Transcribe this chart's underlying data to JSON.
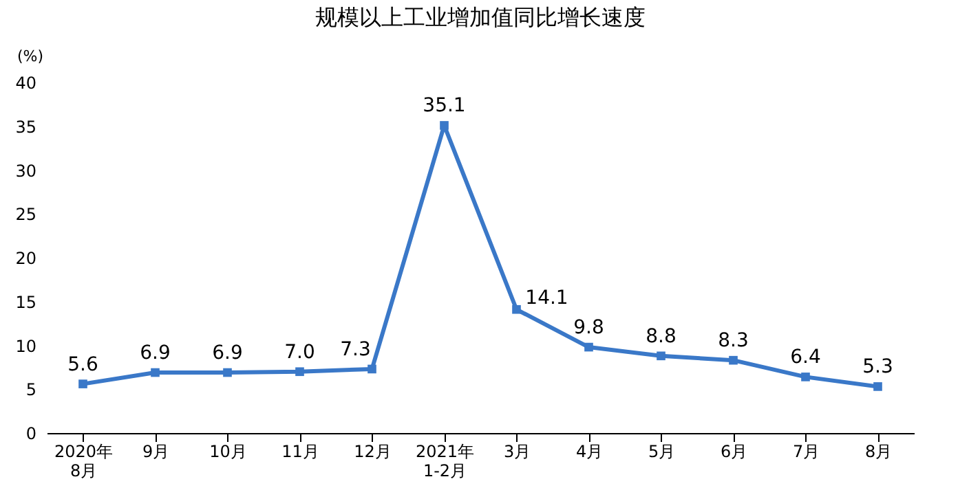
{
  "chart_data": {
    "type": "line",
    "title": "规模以上工业增加值同比增长速度",
    "ylabel": "(%)",
    "categories": [
      "2020年\n8月",
      "9月",
      "10月",
      "11月",
      "12月",
      "2021年\n1-2月",
      "3月",
      "4月",
      "5月",
      "6月",
      "7月",
      "8月"
    ],
    "series": [
      {
        "color": "#3a78c8",
        "values": [
          5.6,
          6.9,
          6.9,
          7.0,
          7.3,
          35.1,
          14.1,
          9.8,
          8.8,
          8.3,
          6.4,
          5.3
        ]
      }
    ],
    "value_labels": [
      "5.6",
      "6.9",
      "6.9",
      "7.0",
      "7.3",
      "35.1",
      "14.1",
      "9.8",
      "8.8",
      "8.3",
      "6.4",
      "5.3"
    ],
    "ylim": [
      0,
      40
    ],
    "yticks": [
      0,
      5,
      10,
      15,
      20,
      25,
      30,
      35,
      40
    ],
    "grid": false,
    "legend": false,
    "marker": "square",
    "line_style": "solid"
  }
}
